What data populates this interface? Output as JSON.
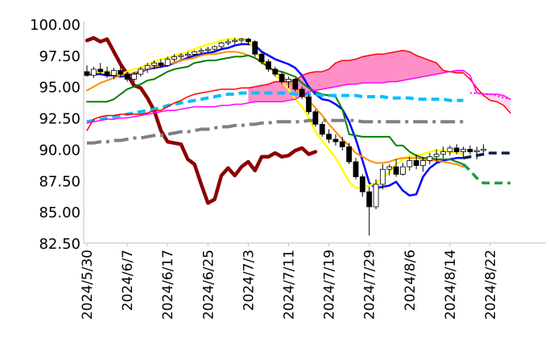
{
  "chart_data": {
    "type": "candlestick",
    "ylim": [
      82.5,
      100.0
    ],
    "yticks": [
      "100.00",
      "97.50",
      "95.00",
      "92.50",
      "90.00",
      "87.50",
      "85.00",
      "82.50"
    ],
    "xtick_labels": [
      "2024/5/30",
      "2024/6/7",
      "2024/6/17",
      "2024/6/25",
      "2024/7/3",
      "2024/7/11",
      "2024/7/19",
      "2024/7/29",
      "2024/8/6",
      "2024/8/14",
      "2024/8/22"
    ],
    "grid": false,
    "legend": "none",
    "candles": [
      {
        "o": 96.2,
        "h": 96.7,
        "l": 95.8,
        "c": 95.9
      },
      {
        "o": 95.9,
        "h": 96.6,
        "l": 95.7,
        "c": 96.4
      },
      {
        "o": 96.4,
        "h": 96.9,
        "l": 96.0,
        "c": 96.2
      },
      {
        "o": 96.2,
        "h": 96.6,
        "l": 95.7,
        "c": 95.9
      },
      {
        "o": 95.9,
        "h": 96.5,
        "l": 95.6,
        "c": 96.3
      },
      {
        "o": 96.3,
        "h": 96.7,
        "l": 95.8,
        "c": 96.0
      },
      {
        "o": 96.0,
        "h": 96.2,
        "l": 95.4,
        "c": 95.6
      },
      {
        "o": 95.6,
        "h": 96.2,
        "l": 95.3,
        "c": 96.0
      },
      {
        "o": 96.0,
        "h": 96.6,
        "l": 95.8,
        "c": 96.4
      },
      {
        "o": 96.4,
        "h": 96.9,
        "l": 96.1,
        "c": 96.7
      },
      {
        "o": 96.7,
        "h": 97.1,
        "l": 96.4,
        "c": 96.9
      },
      {
        "o": 96.9,
        "h": 97.2,
        "l": 96.5,
        "c": 96.7
      },
      {
        "o": 96.7,
        "h": 97.4,
        "l": 96.6,
        "c": 97.2
      },
      {
        "o": 97.2,
        "h": 97.6,
        "l": 97.0,
        "c": 97.4
      },
      {
        "o": 97.4,
        "h": 97.7,
        "l": 97.2,
        "c": 97.5
      },
      {
        "o": 97.5,
        "h": 97.8,
        "l": 97.3,
        "c": 97.6
      },
      {
        "o": 97.6,
        "h": 97.9,
        "l": 97.4,
        "c": 97.8
      },
      {
        "o": 97.8,
        "h": 98.1,
        "l": 97.6,
        "c": 97.9
      },
      {
        "o": 97.9,
        "h": 98.2,
        "l": 97.7,
        "c": 98.0
      },
      {
        "o": 98.0,
        "h": 98.3,
        "l": 97.8,
        "c": 98.2
      },
      {
        "o": 98.2,
        "h": 98.6,
        "l": 98.0,
        "c": 98.5
      },
      {
        "o": 98.5,
        "h": 98.8,
        "l": 98.3,
        "c": 98.6
      },
      {
        "o": 98.6,
        "h": 98.9,
        "l": 98.4,
        "c": 98.7
      },
      {
        "o": 98.7,
        "h": 98.9,
        "l": 98.5,
        "c": 98.8
      },
      {
        "o": 98.8,
        "h": 98.9,
        "l": 98.4,
        "c": 98.6
      },
      {
        "o": 98.6,
        "h": 98.7,
        "l": 97.4,
        "c": 97.6
      },
      {
        "o": 97.6,
        "h": 97.8,
        "l": 96.8,
        "c": 97.0
      },
      {
        "o": 97.0,
        "h": 97.2,
        "l": 96.2,
        "c": 96.4
      },
      {
        "o": 96.4,
        "h": 96.6,
        "l": 95.8,
        "c": 96.0
      },
      {
        "o": 96.0,
        "h": 96.2,
        "l": 95.2,
        "c": 95.4
      },
      {
        "o": 95.4,
        "h": 95.8,
        "l": 94.9,
        "c": 95.6
      },
      {
        "o": 95.6,
        "h": 95.7,
        "l": 94.6,
        "c": 94.8
      },
      {
        "o": 94.8,
        "h": 95.0,
        "l": 94.0,
        "c": 94.2
      },
      {
        "o": 94.2,
        "h": 94.4,
        "l": 92.8,
        "c": 93.0
      },
      {
        "o": 93.0,
        "h": 93.2,
        "l": 91.8,
        "c": 92.0
      },
      {
        "o": 92.0,
        "h": 92.2,
        "l": 91.0,
        "c": 91.2
      },
      {
        "o": 91.2,
        "h": 91.6,
        "l": 90.5,
        "c": 90.8
      },
      {
        "o": 90.8,
        "h": 91.2,
        "l": 90.3,
        "c": 90.6
      },
      {
        "o": 90.6,
        "h": 91.0,
        "l": 89.9,
        "c": 90.2
      },
      {
        "o": 90.2,
        "h": 90.5,
        "l": 88.8,
        "c": 89.0
      },
      {
        "o": 89.0,
        "h": 89.3,
        "l": 87.6,
        "c": 87.8
      },
      {
        "o": 87.8,
        "h": 88.0,
        "l": 86.2,
        "c": 86.6
      },
      {
        "o": 86.6,
        "h": 87.0,
        "l": 83.1,
        "c": 85.4
      },
      {
        "o": 85.4,
        "h": 87.6,
        "l": 85.2,
        "c": 87.2
      },
      {
        "o": 87.2,
        "h": 88.8,
        "l": 86.8,
        "c": 88.4
      },
      {
        "o": 88.4,
        "h": 88.8,
        "l": 87.9,
        "c": 88.6
      },
      {
        "o": 88.6,
        "h": 89.2,
        "l": 87.8,
        "c": 88.0
      },
      {
        "o": 88.0,
        "h": 88.9,
        "l": 87.9,
        "c": 88.6
      },
      {
        "o": 88.6,
        "h": 89.4,
        "l": 88.3,
        "c": 89.1
      },
      {
        "o": 89.1,
        "h": 89.6,
        "l": 88.4,
        "c": 88.7
      },
      {
        "o": 88.7,
        "h": 89.4,
        "l": 88.2,
        "c": 89.1
      },
      {
        "o": 89.1,
        "h": 89.7,
        "l": 88.8,
        "c": 89.4
      },
      {
        "o": 89.4,
        "h": 90.0,
        "l": 89.0,
        "c": 89.6
      },
      {
        "o": 89.6,
        "h": 90.2,
        "l": 89.3,
        "c": 89.8
      },
      {
        "o": 89.8,
        "h": 90.3,
        "l": 89.5,
        "c": 90.1
      },
      {
        "o": 90.1,
        "h": 90.4,
        "l": 89.6,
        "c": 89.8
      },
      {
        "o": 89.8,
        "h": 90.2,
        "l": 89.3,
        "c": 90.0
      },
      {
        "o": 90.0,
        "h": 90.3,
        "l": 89.6,
        "c": 89.8
      },
      {
        "o": 89.8,
        "h": 90.2,
        "l": 89.2,
        "c": 89.9
      },
      {
        "o": 89.9,
        "h": 90.4,
        "l": 89.5,
        "c": 90.0
      }
    ],
    "series": [
      {
        "color": "#8B0000",
        "style": "solid",
        "width": 4.5,
        "start": 0,
        "values": [
          98.7,
          98.9,
          98.6,
          98.8,
          97.8,
          96.8,
          96.0,
          95.1,
          94.9,
          94.1,
          93.1,
          91.5,
          90.6,
          90.5,
          90.4,
          89.2,
          88.8,
          87.2,
          85.7,
          86.0,
          87.9,
          88.5,
          87.9,
          88.6,
          89.0,
          88.3,
          89.4,
          89.4,
          89.7,
          89.4,
          89.5,
          89.9,
          90.1,
          89.6,
          89.8
        ]
      },
      {
        "color": "#0000FF",
        "style": "solid",
        "width": 2.5,
        "start": 0,
        "values": [
          96.0,
          96.0,
          96.0,
          95.9,
          95.9,
          95.8,
          95.9,
          96.0,
          96.2,
          96.4,
          96.5,
          96.6,
          96.7,
          96.9,
          97.1,
          97.3,
          97.5,
          97.6,
          97.7,
          97.8,
          98.0,
          98.1,
          98.3,
          98.4,
          98.4,
          98.3,
          97.8,
          97.5,
          97.2,
          97.0,
          96.8,
          96.5,
          95.9,
          95.0,
          94.4,
          94.0,
          93.9,
          93.6,
          93.2,
          92.2,
          90.8,
          89.1,
          87.3,
          86.9,
          87.0,
          87.1,
          87.4,
          86.7,
          86.3,
          86.4,
          87.8,
          88.5,
          88.9,
          89.1,
          89.2,
          89.3,
          89.3
        ]
      },
      {
        "color": "#FFFF00",
        "style": "solid",
        "width": 2.5,
        "start": 0,
        "values": [
          96.1,
          96.1,
          96.2,
          96.2,
          96.0,
          96.0,
          96.2,
          96.4,
          96.5,
          96.8,
          97.0,
          97.2,
          97.3,
          97.5,
          97.6,
          97.8,
          98.0,
          98.2,
          98.4,
          98.5,
          98.7,
          98.8,
          98.8,
          98.8,
          98.7,
          97.9,
          97.2,
          96.7,
          96.0,
          95.4,
          94.8,
          94.0,
          93.4,
          92.5,
          91.4,
          90.7,
          90.0,
          89.3,
          88.4,
          87.4,
          86.9,
          87.0,
          87.1,
          87.3,
          87.7,
          88.2,
          88.8,
          89.2,
          89.5,
          89.5,
          89.6,
          89.8,
          89.9,
          89.9,
          89.8,
          89.7,
          89.6
        ]
      },
      {
        "color": "#FF8C00",
        "style": "solid",
        "width": 2,
        "start": 0,
        "values": [
          94.7,
          95.0,
          95.3,
          95.5,
          95.7,
          95.9,
          96.0,
          96.1,
          96.3,
          96.4,
          96.6,
          96.7,
          96.8,
          96.9,
          97.1,
          97.2,
          97.3,
          97.5,
          97.6,
          97.6,
          97.7,
          97.8,
          97.8,
          97.7,
          97.5,
          97.3,
          96.9,
          96.6,
          96.2,
          95.8,
          95.4,
          94.9,
          94.4,
          93.9,
          93.3,
          92.7,
          92.0,
          91.4,
          90.8,
          90.3,
          89.7,
          89.4,
          89.1,
          88.9,
          88.9,
          89.0,
          89.2,
          89.3,
          89.3,
          89.3,
          89.2,
          89.1,
          89.1,
          89.0,
          88.9,
          88.8,
          88.6
        ]
      },
      {
        "color": "#008000",
        "style": "solid",
        "width": 2,
        "start": 0,
        "values": [
          93.8,
          93.8,
          93.8,
          93.8,
          94.0,
          94.4,
          94.8,
          95.0,
          95.2,
          95.5,
          95.6,
          95.9,
          96.2,
          96.4,
          96.5,
          96.6,
          96.9,
          97.0,
          97.1,
          97.1,
          97.2,
          97.3,
          97.4,
          97.4,
          97.5,
          97.3,
          97.0,
          96.5,
          96.3,
          96.2,
          96.0,
          95.8,
          95.3,
          94.9,
          94.6,
          94.4,
          94.3,
          94.2,
          93.2,
          91.2,
          91.1,
          91.0,
          91.0,
          91.0,
          91.0,
          91.0,
          90.3,
          90.3,
          89.8,
          89.5,
          89.3,
          89.3,
          89.2,
          89.2,
          89.2,
          89.0,
          88.8
        ]
      },
      {
        "color": "#00BFFF",
        "style": "dashed",
        "width": 4,
        "start": 0,
        "values": [
          92.2,
          92.3,
          92.4,
          92.5,
          92.6,
          92.7,
          92.8,
          92.9,
          93.0,
          93.1,
          93.2,
          93.3,
          93.5,
          93.6,
          93.7,
          93.8,
          93.9,
          94.0,
          94.1,
          94.2,
          94.3,
          94.4,
          94.4,
          94.5,
          94.5,
          94.5,
          94.5,
          94.5,
          94.5,
          94.5,
          94.5,
          94.4,
          94.4,
          94.4,
          94.4,
          94.3,
          94.3,
          94.3,
          94.3,
          94.3,
          94.3,
          94.2,
          94.2,
          94.2,
          94.2,
          94.1,
          94.1,
          94.1,
          94.1,
          94.0,
          94.0,
          94.0,
          94.0,
          94.0,
          93.9,
          93.9,
          93.9
        ]
      },
      {
        "color": "#808080",
        "style": "dashdot",
        "width": 4,
        "start": 0,
        "values": [
          90.5,
          90.5,
          90.6,
          90.6,
          90.7,
          90.7,
          90.8,
          90.9,
          90.9,
          91.0,
          91.1,
          91.1,
          91.2,
          91.3,
          91.4,
          91.4,
          91.5,
          91.6,
          91.6,
          91.7,
          91.8,
          91.8,
          91.9,
          91.9,
          92.0,
          92.0,
          92.1,
          92.1,
          92.2,
          92.2,
          92.2,
          92.2,
          92.2,
          92.3,
          92.3,
          92.3,
          92.3,
          92.3,
          92.3,
          92.3,
          92.3,
          92.2,
          92.2,
          92.2,
          92.2,
          92.2,
          92.2,
          92.2,
          92.2,
          92.2,
          92.2,
          92.2,
          92.2,
          92.2,
          92.2,
          92.2,
          92.2
        ]
      },
      {
        "color": "#FF0000",
        "style": "solid",
        "width": 1.5,
        "start": 0,
        "values": [
          91.5,
          92.4,
          92.6,
          92.7,
          92.7,
          92.8,
          92.8,
          92.8,
          92.8,
          92.9,
          93.1,
          93.1,
          93.4,
          93.7,
          93.9,
          94.2,
          94.4,
          94.5,
          94.6,
          94.7,
          94.8,
          94.8,
          94.8,
          94.9,
          94.9,
          95.0,
          95.1,
          95.2,
          95.4,
          95.4,
          95.4,
          95.5,
          95.9,
          96.1,
          96.2,
          96.2,
          96.4,
          96.9,
          97.1,
          97.1,
          97.2,
          97.4,
          97.5,
          97.6,
          97.6,
          97.7,
          97.8,
          97.9,
          97.8,
          97.5,
          97.3,
          97.1,
          96.9,
          96.3,
          96.2,
          96.1,
          96.1,
          95.6,
          94.9,
          94.3,
          93.9,
          93.8,
          93.5,
          92.9
        ]
      },
      {
        "color": "#FF00FF",
        "style": "solid",
        "width": 1.5,
        "start": 0,
        "values": [
          92.1,
          92.2,
          92.3,
          92.4,
          92.4,
          92.5,
          92.5,
          92.6,
          92.7,
          92.8,
          92.9,
          93.0,
          93.1,
          93.1,
          93.2,
          93.3,
          93.4,
          93.4,
          93.4,
          93.4,
          93.5,
          93.5,
          93.6,
          93.6,
          93.7,
          93.8,
          93.8,
          93.8,
          93.8,
          93.8,
          93.9,
          94.0,
          94.3,
          94.6,
          94.7,
          94.8,
          94.9,
          95.0,
          95.1,
          95.2,
          95.2,
          95.3,
          95.3,
          95.3,
          95.3,
          95.4,
          95.4,
          95.5,
          95.6,
          95.7,
          95.8,
          95.9,
          96.0,
          96.1,
          96.2,
          96.3,
          96.3,
          95.9,
          94.5,
          94.4,
          94.4,
          94.4,
          94.3,
          94.0
        ]
      },
      {
        "color": "#0D1F4F",
        "style": "dashed",
        "width": 3.5,
        "start": 56,
        "values": [
          89.3,
          89.4,
          89.5,
          89.6,
          89.7,
          89.7,
          89.7,
          89.7
        ]
      },
      {
        "color": "#1E9E3A",
        "style": "dashed",
        "width": 3.5,
        "start": 56,
        "values": [
          88.8,
          88.3,
          87.7,
          87.3,
          87.3,
          87.3,
          87.3,
          87.3
        ]
      }
    ],
    "cloud": [
      {
        "color": "#FF69B4",
        "from": 24,
        "to": 56
      },
      {
        "color": "#FFC0E0",
        "from": 57,
        "to": 64
      }
    ]
  }
}
